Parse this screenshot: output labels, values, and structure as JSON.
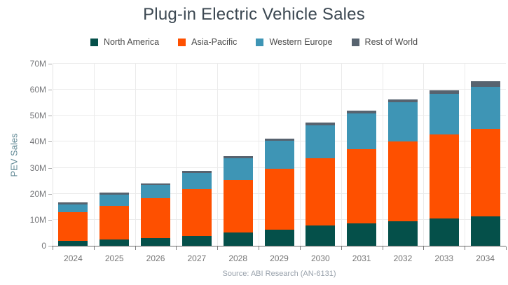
{
  "title": "Plug-in Electric Vehicle Sales",
  "source": "Source: ABI Research (AN-6131)",
  "colors": {
    "background": "#ffffff",
    "title_text": "#3c4852",
    "axis_text": "#76777a",
    "y_axis_title_text": "#5f8793",
    "north_america": "#05504a",
    "asia_pacific": "#fe5000",
    "western_europe": "#3e95b5",
    "rest_of_world": "#57636f"
  },
  "chart_data": {
    "type": "bar",
    "stacked": true,
    "title": "Plug-in Electric Vehicle Sales",
    "xlabel": "",
    "ylabel": "PEV Sales",
    "unit": "M",
    "ylim": [
      0,
      70
    ],
    "y_tick_step": 10,
    "y_tick_labels": [
      "0",
      "10M",
      "20M",
      "30M",
      "40M",
      "50M",
      "60M",
      "70M"
    ],
    "grid": true,
    "legend_position": "top",
    "categories": [
      "2024",
      "2025",
      "2026",
      "2027",
      "2028",
      "2029",
      "2030",
      "2031",
      "2032",
      "2033",
      "2034"
    ],
    "series": [
      {
        "name": "North America",
        "color": "#05504a",
        "values": [
          1.8,
          2.3,
          3.0,
          3.7,
          5.0,
          6.3,
          7.7,
          8.6,
          9.5,
          10.6,
          11.3
        ]
      },
      {
        "name": "Asia-Pacific",
        "color": "#fe5000",
        "values": [
          11.2,
          13.1,
          15.4,
          18.1,
          20.4,
          23.4,
          25.9,
          28.6,
          30.7,
          32.3,
          33.8
        ]
      },
      {
        "name": "Western Europe",
        "color": "#3e95b5",
        "values": [
          3.0,
          4.3,
          4.9,
          6.1,
          8.3,
          10.8,
          12.6,
          13.6,
          14.9,
          15.4,
          15.9
        ]
      },
      {
        "name": "Rest of World",
        "color": "#57636f",
        "values": [
          0.8,
          0.8,
          0.7,
          1.0,
          0.9,
          0.8,
          1.1,
          1.3,
          1.2,
          1.6,
          2.2
        ]
      }
    ],
    "totals": [
      16.8,
      20.5,
      24.0,
      28.9,
      34.6,
      41.3,
      47.3,
      52.1,
      56.3,
      59.9,
      63.2
    ]
  }
}
